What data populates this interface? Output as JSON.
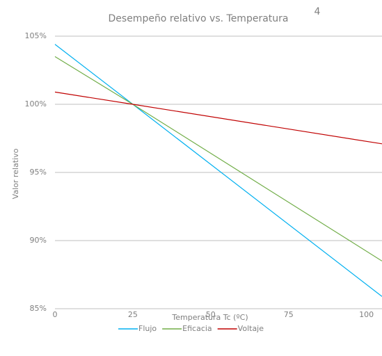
{
  "chart_data": {
    "type": "line",
    "title": "Desempeño  relativo vs. Temperatura",
    "annotation": "4",
    "x_label": "Temperatura  Tc (ºC)",
    "y_label": "Valor relativo",
    "x": [
      0,
      25,
      105
    ],
    "series": [
      {
        "name": "Flujo",
        "color": "#00b0f0",
        "values": [
          104.4,
          100,
          85.9
        ]
      },
      {
        "name": "Eficacia",
        "color": "#70ad47",
        "values": [
          103.5,
          100,
          88.5
        ]
      },
      {
        "name": "Voltaje",
        "color": "#c00000",
        "values": [
          100.9,
          100,
          97.1
        ]
      }
    ],
    "xlim": [
      0,
      105
    ],
    "xticks": [
      0,
      25,
      50,
      75,
      100
    ],
    "ylim": [
      85,
      105
    ],
    "yticks": [
      {
        "value": 85,
        "label": "85%"
      },
      {
        "value": 90,
        "label": "90%"
      },
      {
        "value": 95,
        "label": "95%"
      },
      {
        "value": 100,
        "label": "100%"
      },
      {
        "value": 105,
        "label": "105%"
      }
    ],
    "grid": true,
    "legend": "bottom"
  }
}
